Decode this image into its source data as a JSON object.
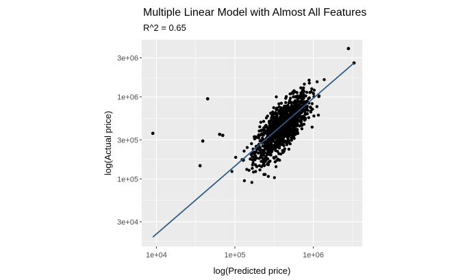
{
  "chart_data": {
    "type": "scatter",
    "title": "Multiple Linear Model with Almost All Features",
    "subtitle": "R^2 = 0.65",
    "xlabel": "log(Predicted price)",
    "ylabel": "log(Actual price)",
    "x_scale": "log10",
    "y_scale": "log10",
    "xlim": [
      6500,
      4200000
    ],
    "ylim": [
      15000,
      5000000
    ],
    "x_ticks": [
      {
        "value": 10000,
        "label": "1e+04"
      },
      {
        "value": 100000,
        "label": "1e+05"
      },
      {
        "value": 1000000,
        "label": "1e+06"
      }
    ],
    "y_ticks": [
      {
        "value": 30000,
        "label": "3e+04"
      },
      {
        "value": 100000,
        "label": "1e+05"
      },
      {
        "value": 300000,
        "label": "3e+05"
      },
      {
        "value": 1000000,
        "label": "1e+06"
      },
      {
        "value": 3000000,
        "label": "3e+06"
      }
    ],
    "grid": true,
    "panel_color": "#ebebeb",
    "point_color": "#000000",
    "fit_line": {
      "color": "#2f5b86",
      "x": [
        9000,
        3300000
      ],
      "y": [
        19500,
        2600000
      ]
    },
    "outliers": [
      {
        "x": 9000,
        "y": 360000
      },
      {
        "x": 45000,
        "y": 950000
      },
      {
        "x": 36000,
        "y": 145000
      },
      {
        "x": 39000,
        "y": 290000
      },
      {
        "x": 64000,
        "y": 350000
      },
      {
        "x": 70000,
        "y": 340000
      },
      {
        "x": 2800000,
        "y": 3900000
      },
      {
        "x": 3300000,
        "y": 2600000
      }
    ],
    "cluster": {
      "center_x": 400000,
      "center_y": 430000,
      "sd_log_x": 0.17,
      "sd_log_y": 0.2,
      "correlation": 0.75,
      "n_points": 1200
    }
  }
}
